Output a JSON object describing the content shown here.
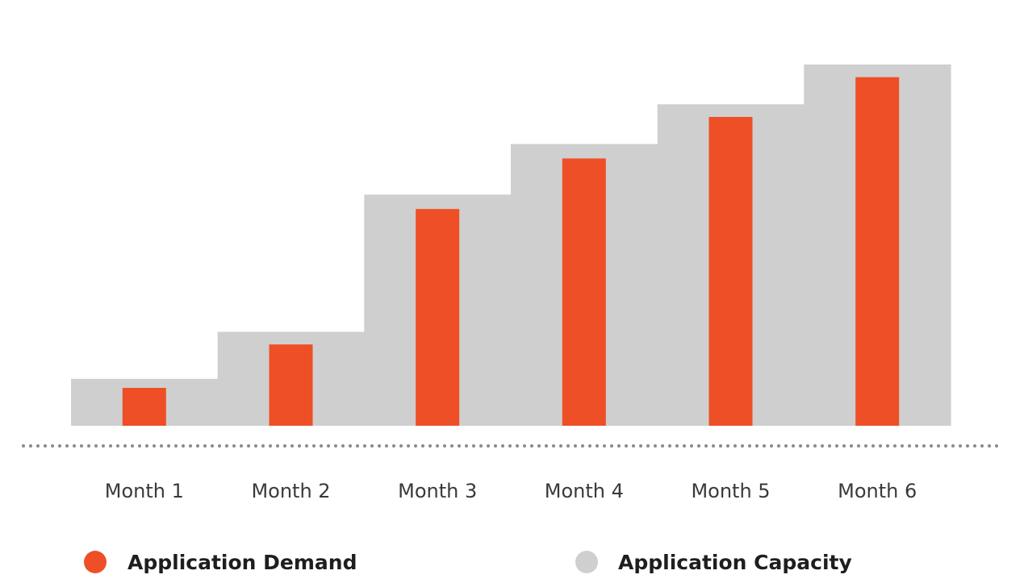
{
  "chart_data": {
    "type": "bar",
    "categories": [
      "Month 1",
      "Month 2",
      "Month 3",
      "Month 4",
      "Month 5",
      "Month 6"
    ],
    "series": [
      {
        "name": "Application Capacity",
        "color": "#cfcfcf",
        "values": [
          13,
          26,
          64,
          78,
          89,
          100
        ]
      },
      {
        "name": "Application Demand",
        "color": "#ee4f26",
        "values": [
          10.5,
          22.5,
          60,
          74,
          85.5,
          96.5
        ]
      }
    ],
    "ylim": [
      0,
      100
    ],
    "grid": false,
    "baseline_style": "dotted",
    "legend_position": "bottom",
    "legend": [
      {
        "label": "Application Demand",
        "color": "#ee4f26"
      },
      {
        "label": "Application Capacity",
        "color": "#cfcfcf"
      }
    ]
  }
}
